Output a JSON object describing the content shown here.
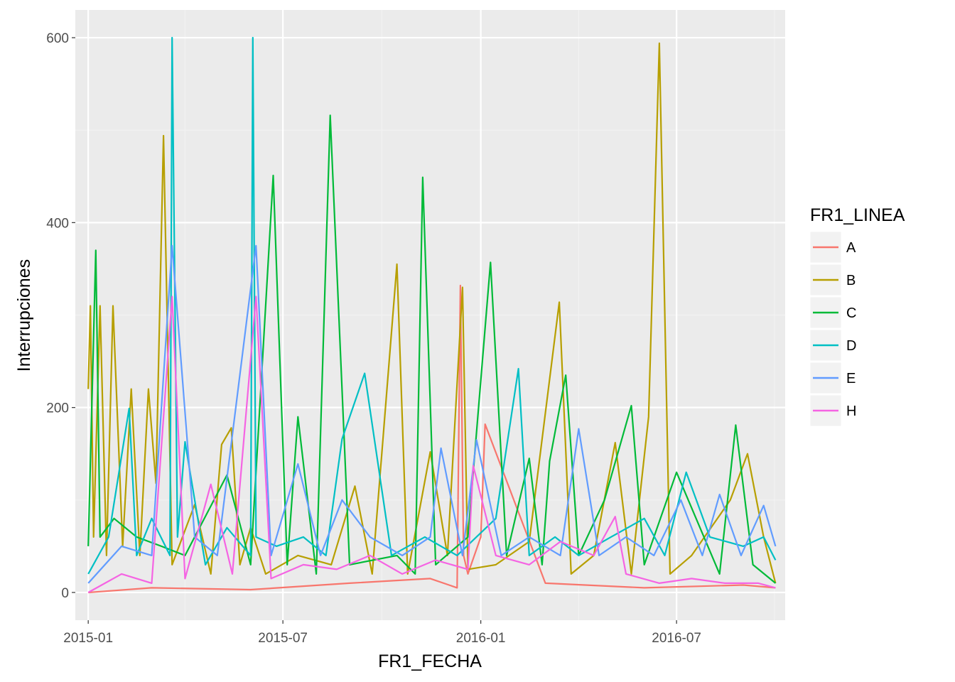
{
  "chart_data": {
    "type": "line",
    "xlabel": "FR1_FECHA",
    "ylabel": "Interrupciones",
    "xlim": [
      "2014-12-20",
      "2016-10-10"
    ],
    "ylim": [
      -30,
      630
    ],
    "x_ticks": [
      "2015-01-01",
      "2015-07-01",
      "2016-01-01",
      "2016-07-01"
    ],
    "x_tick_labels": [
      "2015-01",
      "2015-07",
      "2016-01",
      "2016-07"
    ],
    "y_ticks": [
      0,
      200,
      400,
      600
    ],
    "y_tick_labels": [
      "0",
      "200",
      "400",
      "600"
    ],
    "grid": true,
    "legend": {
      "title": "FR1_LINEA",
      "position": "right"
    },
    "series": [
      {
        "name": "A",
        "color": "#F8766D",
        "x": [
          "2015-01-01",
          "2015-03-01",
          "2015-06-01",
          "2015-09-01",
          "2015-11-15",
          "2015-12-10",
          "2015-12-13",
          "2015-12-16",
          "2015-12-20",
          "2016-01-01",
          "2016-01-05",
          "2016-03-01",
          "2016-06-01",
          "2016-09-01",
          "2016-10-01"
        ],
        "y": [
          0,
          5,
          3,
          10,
          15,
          5,
          332,
          40,
          20,
          60,
          182,
          10,
          5,
          8,
          5
        ]
      },
      {
        "name": "B",
        "color": "#B79F00",
        "x": [
          "2015-01-01",
          "2015-01-03",
          "2015-01-06",
          "2015-01-12",
          "2015-01-18",
          "2015-01-24",
          "2015-02-02",
          "2015-02-10",
          "2015-02-18",
          "2015-02-26",
          "2015-03-05",
          "2015-03-12",
          "2015-03-20",
          "2015-04-10",
          "2015-04-25",
          "2015-05-05",
          "2015-05-14",
          "2015-05-22",
          "2015-06-01",
          "2015-06-15",
          "2015-07-15",
          "2015-08-15",
          "2015-09-06",
          "2015-09-22",
          "2015-10-15",
          "2015-10-25",
          "2015-11-15",
          "2015-12-01",
          "2015-12-15",
          "2015-12-20",
          "2016-01-15",
          "2016-02-15",
          "2016-03-14",
          "2016-03-25",
          "2016-04-15",
          "2016-05-05",
          "2016-05-20",
          "2016-06-05",
          "2016-06-15",
          "2016-06-25",
          "2016-07-15",
          "2016-08-20",
          "2016-09-05",
          "2016-09-20",
          "2016-10-01"
        ],
        "y": [
          220,
          310,
          60,
          310,
          40,
          310,
          50,
          220,
          40,
          220,
          118,
          494,
          30,
          95,
          20,
          160,
          178,
          30,
          70,
          20,
          40,
          30,
          115,
          20,
          355,
          20,
          152,
          40,
          330,
          25,
          30,
          55,
          314,
          20,
          40,
          162,
          20,
          190,
          594,
          20,
          40,
          100,
          150,
          60,
          10
        ]
      },
      {
        "name": "C",
        "color": "#00BA38",
        "x": [
          "2015-01-01",
          "2015-01-08",
          "2015-01-12",
          "2015-01-25",
          "2015-02-15",
          "2015-03-10",
          "2015-04-01",
          "2015-05-10",
          "2015-06-01",
          "2015-06-22",
          "2015-07-05",
          "2015-07-15",
          "2015-08-01",
          "2015-08-14",
          "2015-09-01",
          "2015-10-15",
          "2015-11-01",
          "2015-11-08",
          "2015-11-20",
          "2015-12-20",
          "2016-01-10",
          "2016-01-25",
          "2016-02-15",
          "2016-02-27",
          "2016-03-05",
          "2016-03-20",
          "2016-04-01",
          "2016-04-25",
          "2016-05-20",
          "2016-06-01",
          "2016-07-01",
          "2016-08-10",
          "2016-08-25",
          "2016-09-10",
          "2016-10-01"
        ],
        "y": [
          50,
          370,
          60,
          80,
          60,
          50,
          40,
          127,
          30,
          451,
          30,
          190,
          20,
          516,
          30,
          40,
          20,
          449,
          30,
          60,
          357,
          40,
          145,
          30,
          142,
          235,
          40,
          100,
          202,
          30,
          130,
          20,
          181,
          30,
          10
        ]
      },
      {
        "name": "D",
        "color": "#00BFC4",
        "x": [
          "2015-01-01",
          "2015-01-20",
          "2015-02-08",
          "2015-02-15",
          "2015-03-01",
          "2015-03-18",
          "2015-03-20",
          "2015-03-25",
          "2015-04-01",
          "2015-04-20",
          "2015-05-10",
          "2015-06-01",
          "2015-06-03",
          "2015-06-06",
          "2015-06-25",
          "2015-07-20",
          "2015-08-10",
          "2015-08-25",
          "2015-09-15",
          "2015-10-10",
          "2015-11-10",
          "2015-12-10",
          "2016-01-15",
          "2016-02-05",
          "2016-02-15",
          "2016-03-10",
          "2016-04-01",
          "2016-05-01",
          "2016-06-01",
          "2016-06-20",
          "2016-07-10",
          "2016-08-01",
          "2016-09-01",
          "2016-09-20",
          "2016-10-01"
        ],
        "y": [
          20,
          60,
          199,
          40,
          80,
          40,
          600,
          60,
          163,
          30,
          70,
          40,
          600,
          60,
          50,
          60,
          40,
          166,
          237,
          40,
          60,
          40,
          80,
          242,
          40,
          60,
          40,
          60,
          80,
          40,
          130,
          60,
          50,
          60,
          35
        ]
      },
      {
        "name": "E",
        "color": "#619CFF",
        "x": [
          "2015-01-01",
          "2015-02-01",
          "2015-03-01",
          "2015-03-20",
          "2015-04-10",
          "2015-05-01",
          "2015-06-06",
          "2015-06-20",
          "2015-07-15",
          "2015-08-05",
          "2015-08-25",
          "2015-09-20",
          "2015-10-20",
          "2015-11-15",
          "2015-11-25",
          "2015-12-15",
          "2015-12-28",
          "2016-01-20",
          "2016-02-15",
          "2016-03-15",
          "2016-04-01",
          "2016-04-20",
          "2016-05-15",
          "2016-06-10",
          "2016-07-05",
          "2016-07-25",
          "2016-08-10",
          "2016-08-30",
          "2016-09-20",
          "2016-10-01"
        ],
        "y": [
          10,
          50,
          40,
          375,
          60,
          40,
          375,
          40,
          139,
          40,
          100,
          60,
          40,
          60,
          156,
          40,
          165,
          40,
          60,
          40,
          177,
          40,
          60,
          40,
          100,
          40,
          106,
          40,
          94,
          50
        ]
      },
      {
        "name": "H",
        "color": "#F564E3",
        "x": [
          "2015-01-01",
          "2015-02-01",
          "2015-03-01",
          "2015-03-20",
          "2015-04-01",
          "2015-04-25",
          "2015-05-15",
          "2015-06-06",
          "2015-06-20",
          "2015-07-20",
          "2015-08-20",
          "2015-09-20",
          "2015-10-20",
          "2015-11-20",
          "2015-12-20",
          "2015-12-25",
          "2016-01-15",
          "2016-02-15",
          "2016-03-15",
          "2016-04-15",
          "2016-05-05",
          "2016-05-15",
          "2016-06-15",
          "2016-07-15",
          "2016-08-15",
          "2016-09-15",
          "2016-10-01"
        ],
        "y": [
          0,
          20,
          10,
          320,
          15,
          117,
          20,
          320,
          15,
          30,
          25,
          40,
          20,
          35,
          25,
          137,
          40,
          30,
          55,
          40,
          82,
          20,
          10,
          15,
          10,
          10,
          5
        ]
      }
    ]
  }
}
